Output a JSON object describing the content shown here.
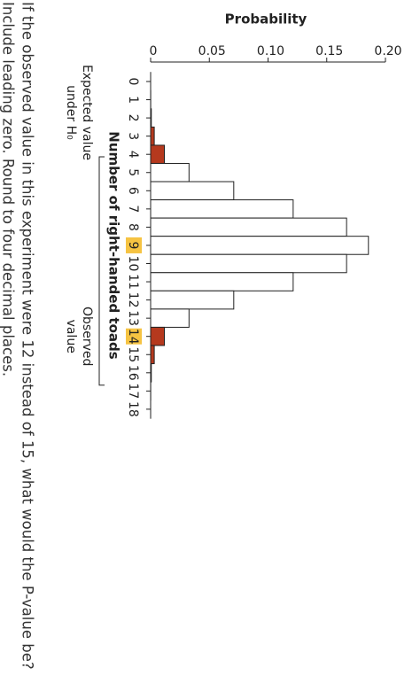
{
  "chart_data": {
    "type": "bar",
    "y_label": "Probability",
    "x_label": "Number of right-handed toads",
    "categories": [
      0,
      1,
      2,
      3,
      4,
      5,
      6,
      7,
      8,
      9,
      10,
      11,
      12,
      13,
      14,
      15,
      16,
      17,
      18
    ],
    "values": [
      3.8e-06,
      6.9e-05,
      0.00058,
      0.0031,
      0.0117,
      0.0327,
      0.0708,
      0.1214,
      0.1669,
      0.1855,
      0.1669,
      0.1214,
      0.0708,
      0.0327,
      0.0117,
      0.0031,
      0.00058,
      6.9e-05,
      3.8e-06
    ],
    "colors": [
      "#b5391e",
      "#b5391e",
      "#b5391e",
      "#b5391e",
      "#b5391e",
      "#ffffff",
      "#ffffff",
      "#ffffff",
      "#ffffff",
      "#ffffff",
      "#ffffff",
      "#ffffff",
      "#ffffff",
      "#ffffff",
      "#b5391e",
      "#b5391e",
      "#b5391e",
      "#b5391e",
      "#b5391e"
    ],
    "highlight_categories": [
      9,
      14
    ],
    "highlight_color": "#f6c342",
    "ylim": [
      0,
      0.2
    ],
    "yticks": [
      0,
      0.05,
      {
        "value": 0.1,
        "label": "0.10"
      },
      0.15,
      {
        "value": 0.2,
        "label": "0.20"
      }
    ],
    "annotations": [
      [
        "Expected value",
        "under H₀"
      ],
      [
        "Observed",
        "value"
      ]
    ]
  },
  "question": [
    "If the observed value in this experiment were 12 instead of 15, what would the P-value be?",
    "Include leading zero. Round to four decimal places."
  ]
}
